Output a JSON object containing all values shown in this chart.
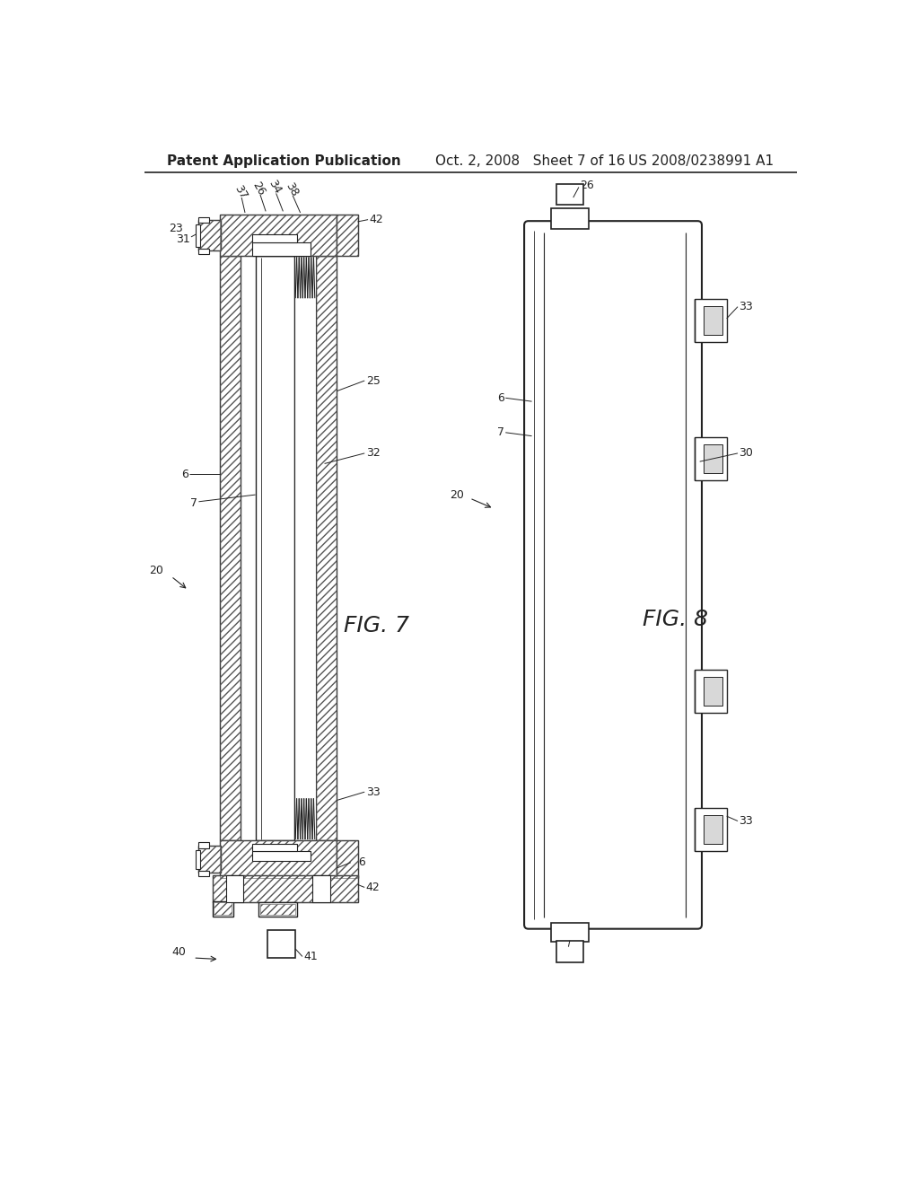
{
  "bg_color": "#ffffff",
  "header_left": "Patent Application Publication",
  "header_mid": "Oct. 2, 2008   Sheet 7 of 16",
  "header_right": "US 2008/0238991 A1",
  "fig7_label": "FIG. 7",
  "fig8_label": "FIG. 8",
  "line_color": "#222222",
  "hatch_color": "#444444",
  "title_fontsize": 11,
  "label_fontsize": 9,
  "fig_label_fontsize": 18
}
